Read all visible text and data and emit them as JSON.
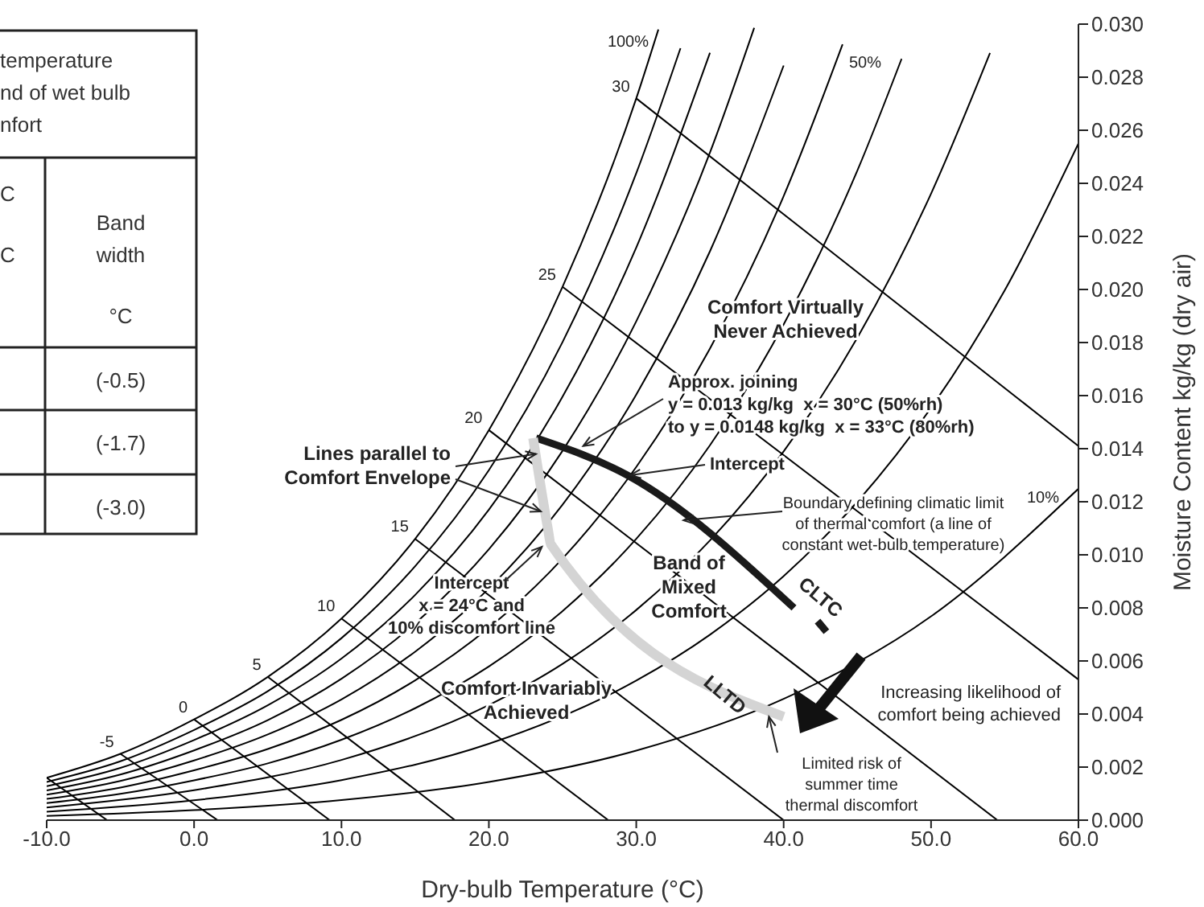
{
  "chart_data": [
    {
      "type": "other",
      "annotations": [
        "temperature",
        "nd of wet bulb",
        "nfort",
        "C",
        "C",
        "Band",
        "width",
        "°C",
        "(-0.5)",
        "(-1.7)",
        "(-3.0)"
      ]
    },
    {
      "type": "line",
      "xlabel": "Dry-bulb Temperature (°C)",
      "ylabel": "Moisture Content kg/kg (dry air)",
      "xlim": [
        -10,
        60
      ],
      "ylim": [
        0,
        0.03
      ],
      "xticks": [
        {
          "value": -10,
          "label": "-10.0"
        },
        {
          "value": 0,
          "label": "0.0"
        },
        {
          "value": 10,
          "label": "10.0"
        },
        {
          "value": 20,
          "label": "20.0"
        },
        {
          "value": 30,
          "label": "30.0"
        },
        {
          "value": 40,
          "label": "40.0"
        },
        {
          "value": 50,
          "label": "50.0"
        },
        {
          "value": 60,
          "label": "60.0"
        }
      ],
      "yticks": [
        {
          "value": 0,
          "label": "0.000"
        },
        0.002,
        0.004,
        0.006,
        0.008,
        {
          "value": 0.01,
          "label": "0.010"
        },
        0.012,
        0.014,
        0.016,
        0.018,
        {
          "value": 0.02,
          "label": "0.020"
        },
        0.022,
        0.024,
        0.026,
        0.028,
        {
          "value": 0.03,
          "label": "0.030"
        }
      ],
      "grid": false,
      "legend": false,
      "marker": "none",
      "line_style": "solid",
      "annotations": [
        "Comfort Virtually\nNever Achieved",
        {
          "text": "Approx. joining\ny = 0.013 kg/kg  x = 30°C (50%rh)\nto y = 0.0148 kg/kg  x = 33°C (80%rh)",
          "x": 26.4,
          "y": 0.0141
        },
        {
          "text": "Intercept",
          "x": 29.6,
          "y": 0.013
        },
        {
          "text": "Lines parallel to\nComfort Envelope",
          "x": 23.2,
          "y": 0.0138
        },
        {
          "text": "Boundary defining climatic limit\nof thermal comfort (a line of\nconstant wet-bulb temperature)",
          "x": 33.2,
          "y": 0.0113
        },
        "Band of\nMixed\nComfort",
        {
          "text": "Intercept\nx = 24°C and\n10% discomfort line",
          "x": 23.6,
          "y": 0.0103
        },
        "Comfort Invariably\nAchieved",
        "Increasing likelihood of\ncomfort being achieved",
        {
          "text": "Limited risk of\nsummer time\nthermal discomfort",
          "x": 39.0,
          "y": 0.0039
        }
      ],
      "series": [
        {
          "name": "100%",
          "color": "#000000",
          "x": [
            -10,
            -5,
            0,
            5,
            10,
            15,
            20,
            25,
            30,
            31.5
          ],
          "values": [
            0.0016,
            0.0025,
            0.0038,
            0.0054,
            0.0076,
            0.0106,
            0.0147,
            0.0201,
            0.0272,
            0.0298
          ]
        },
        {
          "color": "#000000",
          "x": [
            -10,
            -5,
            0,
            5,
            10,
            15,
            20,
            25,
            30,
            33
          ],
          "values": [
            0.00144,
            0.00222,
            0.0034,
            0.00486,
            0.00686,
            0.00957,
            0.01319,
            0.01802,
            0.02438,
            0.02909
          ]
        },
        {
          "color": "#000000",
          "x": [
            -10,
            -5,
            0,
            5,
            10,
            15,
            20,
            25,
            30,
            35
          ],
          "values": [
            0.00128,
            0.00197,
            0.00302,
            0.00433,
            0.00609,
            0.00849,
            0.0117,
            0.01596,
            0.02158,
            0.02892
          ]
        },
        {
          "color": "#000000",
          "x": [
            -10,
            -5,
            0,
            5,
            10,
            15,
            20,
            25,
            30,
            35,
            38
          ],
          "values": [
            0.00112,
            0.00172,
            0.00263,
            0.00377,
            0.00533,
            0.00742,
            0.01021,
            0.01392,
            0.0188,
            0.02516,
            0.02986
          ]
        },
        {
          "color": "#000000",
          "x": [
            -10,
            -5,
            0,
            5,
            10,
            15,
            20,
            25,
            30,
            35,
            40
          ],
          "values": [
            0.00096,
            0.00148,
            0.00225,
            0.00323,
            0.00455,
            0.00635,
            0.00873,
            0.01189,
            0.01604,
            0.02144,
            0.02844
          ]
        },
        {
          "name": "50%",
          "color": "#000000",
          "x": [
            -10,
            -5,
            0,
            5,
            10,
            15,
            20,
            25,
            30,
            35,
            40,
            44
          ],
          "values": [
            0.0008,
            0.00123,
            0.00188,
            0.00268,
            0.00378,
            0.00527,
            0.00725,
            0.00986,
            0.01331,
            0.01777,
            0.02352,
            0.02924
          ]
        },
        {
          "color": "#000000",
          "x": [
            -10,
            -5,
            0,
            5,
            10,
            15,
            20,
            25,
            30,
            35,
            40,
            45,
            48
          ],
          "values": [
            0.00064,
            0.00099,
            0.0015,
            0.00214,
            0.00303,
            0.00422,
            0.00579,
            0.00788,
            0.0106,
            0.01413,
            0.01868,
            0.02448,
            0.02869
          ]
        },
        {
          "color": "#000000",
          "x": [
            -10,
            0,
            10,
            20,
            25,
            30,
            35,
            40,
            45,
            50,
            54
          ],
          "values": [
            0.00048,
            0.00113,
            0.00227,
            0.00434,
            0.00589,
            0.00792,
            0.01054,
            0.0139,
            0.01818,
            0.02361,
            0.02891
          ]
        },
        {
          "color": "#000000",
          "x": [
            -10,
            0,
            10,
            20,
            30,
            35,
            40,
            45,
            50,
            55,
            60
          ],
          "values": [
            0.00032,
            0.00075,
            0.00151,
            0.00288,
            0.00526,
            0.00699,
            0.0092,
            0.012,
            0.01554,
            0.01997,
            0.0255
          ]
        },
        {
          "name": "10%",
          "color": "#000000",
          "x": [
            -10,
            0,
            10,
            20,
            30,
            40,
            50,
            60
          ],
          "values": [
            0.00016,
            0.00038,
            0.00076,
            0.00144,
            0.00262,
            0.00457,
            0.00768,
            0.01249
          ]
        },
        {
          "color": "#000000",
          "x": [
            -10,
            -5.9
          ],
          "values": [
            0.0016,
            0
          ]
        },
        {
          "name": "-5",
          "color": "#000000",
          "x": [
            -5,
            1.6
          ],
          "values": [
            0.0025,
            0
          ]
        },
        {
          "name": "0",
          "color": "#000000",
          "x": [
            0,
            9.2
          ],
          "values": [
            0.0038,
            0
          ]
        },
        {
          "name": "5",
          "color": "#000000",
          "x": [
            5,
            17.7
          ],
          "values": [
            0.0054,
            0
          ]
        },
        {
          "name": "10",
          "color": "#000000",
          "x": [
            10,
            28.1
          ],
          "values": [
            0.0076,
            0
          ]
        },
        {
          "name": "15",
          "color": "#000000",
          "x": [
            15,
            40
          ],
          "values": [
            0.0106,
            0
          ]
        },
        {
          "name": "20",
          "color": "#000000",
          "x": [
            20,
            54.5
          ],
          "values": [
            0.0147,
            0
          ]
        },
        {
          "name": "25",
          "color": "#000000",
          "x": [
            25,
            60
          ],
          "values": [
            0.0201,
            0.0053
          ]
        },
        {
          "name": "30",
          "color": "#000000",
          "x": [
            30,
            60
          ],
          "values": [
            0.0272,
            0.0141
          ]
        },
        {
          "name": "CLTC",
          "color": "#1a1a1a",
          "x": [
            23.2,
            29.4,
            40.7,
            41.5,
            42.3,
            42.9
          ],
          "values": [
            0.0144,
            0.013,
            0.008,
            null,
            0.0075,
            0.0071
          ]
        },
        {
          "name": "LLTD",
          "color": "#d4d4d4",
          "x": [
            23.0,
            24.0,
            24.2,
            40.0
          ],
          "values": [
            0.0144,
            0.011,
            0.0104,
            0.0039
          ]
        }
      ]
    }
  ]
}
